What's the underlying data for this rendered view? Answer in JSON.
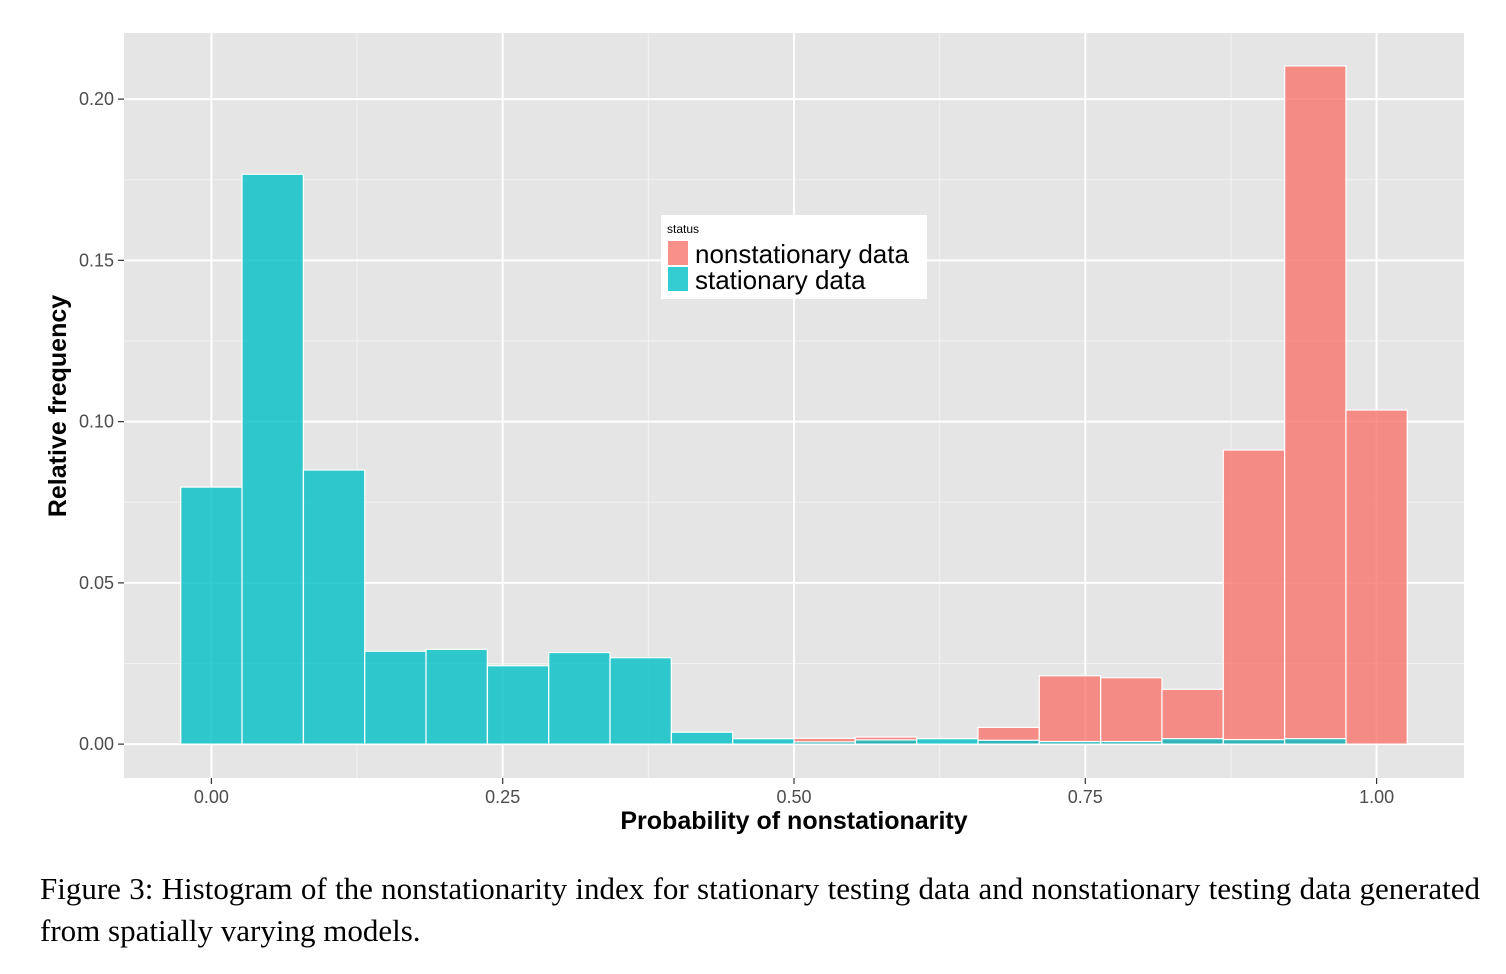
{
  "chart_data": {
    "type": "bar",
    "subtype": "histogram",
    "xlabel": "Probability of nonstationarity",
    "ylabel": "Relative frequency",
    "xlim": [
      -0.075,
      1.075
    ],
    "ylim": [
      -0.0105,
      0.2205
    ],
    "x_ticks": [
      0,
      0.25,
      0.5,
      0.75,
      1
    ],
    "x_tick_labels": [
      "0.00",
      "0.25",
      "0.50",
      "0.75",
      "1.00"
    ],
    "y_ticks": [
      0,
      0.05,
      0.1,
      0.15,
      0.2
    ],
    "y_tick_labels": [
      "0.00",
      "0.05",
      "0.10",
      "0.15",
      "0.20"
    ],
    "bin_width": 0.0526,
    "bin_centers": [
      0.0,
      0.0526,
      0.1053,
      0.1579,
      0.2105,
      0.2632,
      0.3158,
      0.3684,
      0.4211,
      0.4737,
      0.5263,
      0.5789,
      0.6316,
      0.6842,
      0.7368,
      0.7895,
      0.8421,
      0.8947,
      0.9474,
      1.0
    ],
    "series": [
      {
        "name": "nonstationary data",
        "color": "#F8766D",
        "values": [
          0,
          0,
          0,
          0,
          0,
          0,
          0,
          0,
          0,
          0,
          0.0018,
          0.0022,
          0,
          0.0052,
          0.0212,
          0.0206,
          0.017,
          0.0912,
          0.2103,
          0.1036
        ]
      },
      {
        "name": "stationary data",
        "color": "#00BFC4",
        "values": [
          0.0797,
          0.1767,
          0.085,
          0.0288,
          0.0294,
          0.0243,
          0.0284,
          0.0268,
          0.0037,
          0.0017,
          0.0007,
          0.0013,
          0.0017,
          0.0012,
          0.0008,
          0.0008,
          0.0017,
          0.0014,
          0.0017,
          0
        ]
      }
    ],
    "legend": {
      "title": "status",
      "entries": [
        "nonstationary data",
        "stationary data"
      ]
    },
    "grid": true,
    "background_color": "#E5E5E5"
  },
  "caption": "Figure 3: Histogram of the nonstationarity index for stationary testing data and nonstationary testing data generated from spatially varying models."
}
